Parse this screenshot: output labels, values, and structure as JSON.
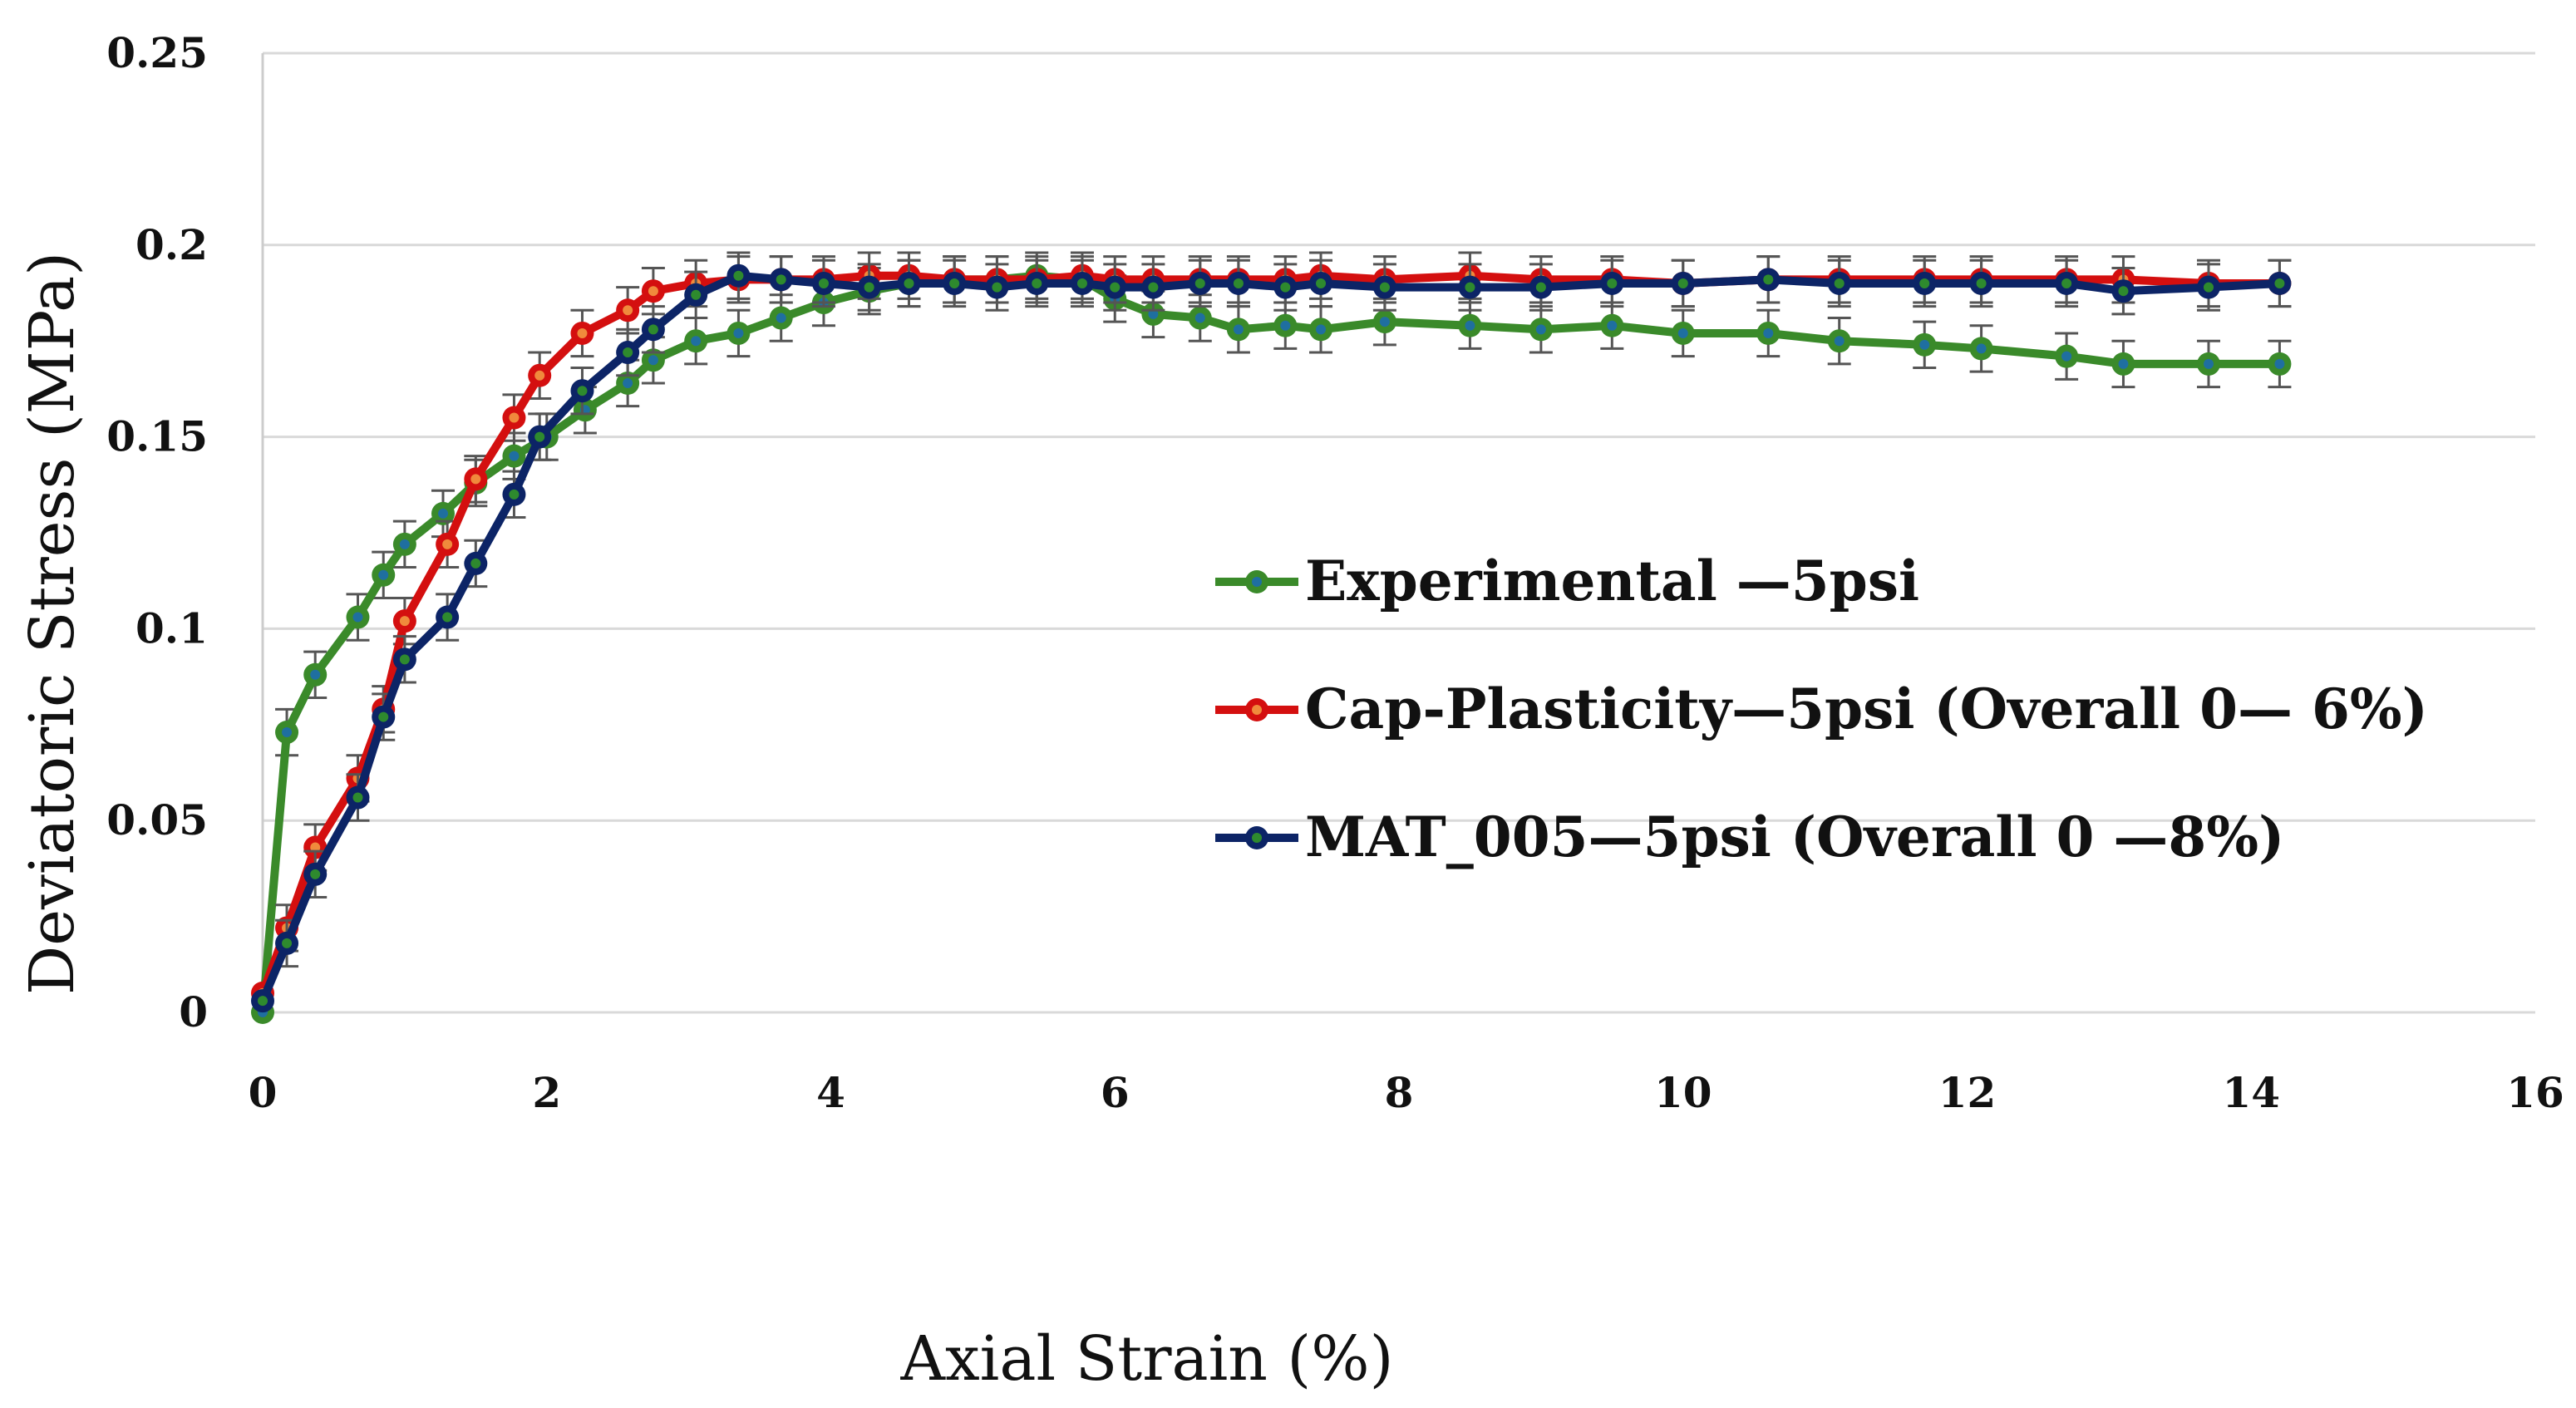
{
  "chart_data": {
    "type": "line",
    "title": "",
    "xlabel": "Axial Strain (%)",
    "ylabel": "Deviatoric Stress (MPa)",
    "xlim": [
      0,
      16
    ],
    "ylim": [
      0,
      0.25
    ],
    "xticks": [
      0,
      2,
      4,
      6,
      8,
      10,
      12,
      14,
      16
    ],
    "yticks": [
      0,
      0.05,
      0.1,
      0.15,
      0.2,
      0.25
    ],
    "ytick_labels": [
      "0",
      "0.05",
      "0.1",
      "0.15",
      "0.2",
      "0.25"
    ],
    "grid": "horizontal",
    "legend_position": "center-right",
    "error_bar": 0.006,
    "series": [
      {
        "name": "Experimental —5psi",
        "color": "#3a8a2a",
        "marker_inner": "#1f6fa0",
        "x": [
          0,
          0.17,
          0.37,
          0.67,
          0.85,
          1.0,
          1.27,
          1.5,
          1.77,
          2.0,
          2.27,
          2.57,
          2.75,
          3.05,
          3.35,
          3.65,
          3.95,
          4.27,
          4.55,
          4.87,
          5.17,
          5.45,
          5.77,
          6.0,
          6.27,
          6.6,
          6.87,
          7.2,
          7.45,
          7.9,
          8.5,
          9.0,
          9.5,
          10.0,
          10.6,
          11.1,
          11.7,
          12.1,
          12.7,
          13.1,
          13.7,
          14.2
        ],
        "y": [
          0,
          0.073,
          0.088,
          0.103,
          0.114,
          0.122,
          0.13,
          0.138,
          0.145,
          0.15,
          0.157,
          0.164,
          0.17,
          0.175,
          0.177,
          0.181,
          0.185,
          0.188,
          0.19,
          0.191,
          0.191,
          0.192,
          0.191,
          0.186,
          0.182,
          0.181,
          0.178,
          0.179,
          0.178,
          0.18,
          0.179,
          0.178,
          0.179,
          0.177,
          0.177,
          0.175,
          0.174,
          0.173,
          0.171,
          0.169,
          0.169,
          0.169
        ]
      },
      {
        "name": "Cap-Plasticity—5psi (Overall 0— 6%)",
        "color": "#d40f0f",
        "marker_inner": "#f08a3c",
        "x": [
          0,
          0.17,
          0.37,
          0.67,
          0.85,
          1.0,
          1.3,
          1.5,
          1.77,
          1.95,
          2.25,
          2.57,
          2.75,
          3.05,
          3.35,
          3.65,
          3.95,
          4.27,
          4.55,
          4.87,
          5.17,
          5.45,
          5.77,
          6.0,
          6.27,
          6.6,
          6.87,
          7.2,
          7.45,
          7.9,
          8.5,
          9.0,
          9.5,
          10.0,
          10.6,
          11.1,
          11.7,
          12.1,
          12.7,
          13.1,
          13.7,
          14.2
        ],
        "y": [
          0.005,
          0.022,
          0.043,
          0.061,
          0.079,
          0.102,
          0.122,
          0.139,
          0.155,
          0.166,
          0.177,
          0.183,
          0.188,
          0.19,
          0.191,
          0.191,
          0.191,
          0.192,
          0.192,
          0.191,
          0.191,
          0.191,
          0.192,
          0.191,
          0.191,
          0.191,
          0.191,
          0.191,
          0.192,
          0.191,
          0.192,
          0.191,
          0.191,
          0.19,
          0.191,
          0.191,
          0.191,
          0.191,
          0.191,
          0.191,
          0.19,
          0.19
        ]
      },
      {
        "name": "MAT_005—5psi (Overall 0 —8%)",
        "color": "#0c2466",
        "marker_inner": "#2e8a2e",
        "x": [
          0,
          0.17,
          0.37,
          0.67,
          0.85,
          1.0,
          1.3,
          1.5,
          1.77,
          1.95,
          2.25,
          2.57,
          2.75,
          3.05,
          3.35,
          3.65,
          3.95,
          4.27,
          4.55,
          4.87,
          5.17,
          5.45,
          5.77,
          6.0,
          6.27,
          6.6,
          6.87,
          7.2,
          7.45,
          7.9,
          8.5,
          9.0,
          9.5,
          10.0,
          10.6,
          11.1,
          11.7,
          12.1,
          12.7,
          13.1,
          13.7,
          14.2
        ],
        "y": [
          0.003,
          0.018,
          0.036,
          0.056,
          0.077,
          0.092,
          0.103,
          0.117,
          0.135,
          0.15,
          0.162,
          0.172,
          0.178,
          0.187,
          0.192,
          0.191,
          0.19,
          0.189,
          0.19,
          0.19,
          0.189,
          0.19,
          0.19,
          0.189,
          0.189,
          0.19,
          0.19,
          0.189,
          0.19,
          0.189,
          0.189,
          0.189,
          0.19,
          0.19,
          0.191,
          0.19,
          0.19,
          0.19,
          0.19,
          0.188,
          0.189,
          0.19
        ]
      }
    ]
  }
}
